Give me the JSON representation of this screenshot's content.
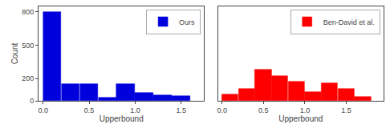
{
  "chart_data": [
    {
      "type": "histogram",
      "bins": [
        0.0,
        0.2,
        0.4,
        0.6,
        0.8,
        1.0,
        1.2,
        1.4,
        1.6
      ],
      "series": [
        {
          "name": "Ours",
          "color": "#0000dd",
          "values": [
            800,
            150,
            150,
            30,
            150,
            75,
            50,
            40
          ]
        }
      ],
      "xlabel": "Upperbound",
      "ylabel": "Count",
      "xlim": [
        -0.05,
        1.75
      ],
      "ylim": [
        0,
        850
      ],
      "xticks": [
        {
          "value": 0,
          "label": "0.0"
        },
        0.5,
        {
          "value": 1,
          "label": "1.0"
        },
        1.5
      ],
      "yticks": [
        0,
        200,
        500,
        800
      ],
      "legend": "upper right",
      "grid": false
    },
    {
      "type": "histogram",
      "bins": [
        0.0,
        0.2,
        0.4,
        0.6,
        0.8,
        1.0,
        1.2,
        1.4,
        1.6,
        1.8
      ],
      "series": [
        {
          "name": "Ben-David et al.",
          "color": "#ff0000",
          "values": [
            55,
            110,
            280,
            220,
            170,
            80,
            160,
            110,
            35
          ]
        }
      ],
      "xlabel": "Upperbound",
      "xlim": [
        -0.05,
        1.95
      ],
      "ylim": [
        0,
        850
      ],
      "xticks": [
        {
          "value": 0,
          "label": "0.0"
        },
        0.5,
        {
          "value": 1,
          "label": "1.0"
        },
        1.5
      ],
      "tick_labels": "x",
      "legend": "upper right",
      "grid": false
    }
  ]
}
